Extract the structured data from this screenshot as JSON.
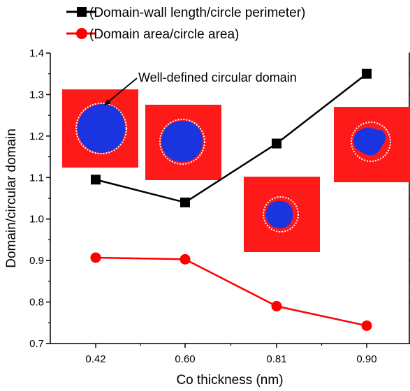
{
  "chart_data": {
    "type": "line",
    "xlabel": "Co thickness (nm)",
    "ylabel": "Domain/circular domain",
    "categories": [
      "0.42",
      "0.60",
      "0.81",
      "0.90"
    ],
    "ylim": [
      0.7,
      1.4
    ],
    "yticks": [
      "0.7",
      "0.8",
      "0.9",
      "1.0",
      "1.1",
      "1.2",
      "1.3",
      "1.4"
    ],
    "legend_position": "top-left",
    "grid": false,
    "series": [
      {
        "name": "(Domain-wall length/circle perimeter)",
        "color": "#000000",
        "marker": "square",
        "values": [
          1.095,
          1.04,
          1.182,
          1.35
        ]
      },
      {
        "name": "(Domain area/circle area)",
        "color": "#ff0000",
        "marker": "circle",
        "values": [
          0.907,
          0.903,
          0.79,
          0.743
        ]
      }
    ],
    "annotations": [
      {
        "text": "Well-defined circular domain"
      }
    ],
    "insets": [
      {
        "image": "circular domain micrograph",
        "background_color": "#ff1a1a",
        "domain_color": "#1a35e0"
      },
      {
        "image": "circular domain micrograph",
        "background_color": "#ff1a1a",
        "domain_color": "#1a35e0"
      },
      {
        "image": "circular domain micrograph",
        "background_color": "#ff1a1a",
        "domain_color": "#1a35e0"
      },
      {
        "image": "circular domain micrograph",
        "background_color": "#ff1a1a",
        "domain_color": "#1a35e0"
      }
    ]
  }
}
